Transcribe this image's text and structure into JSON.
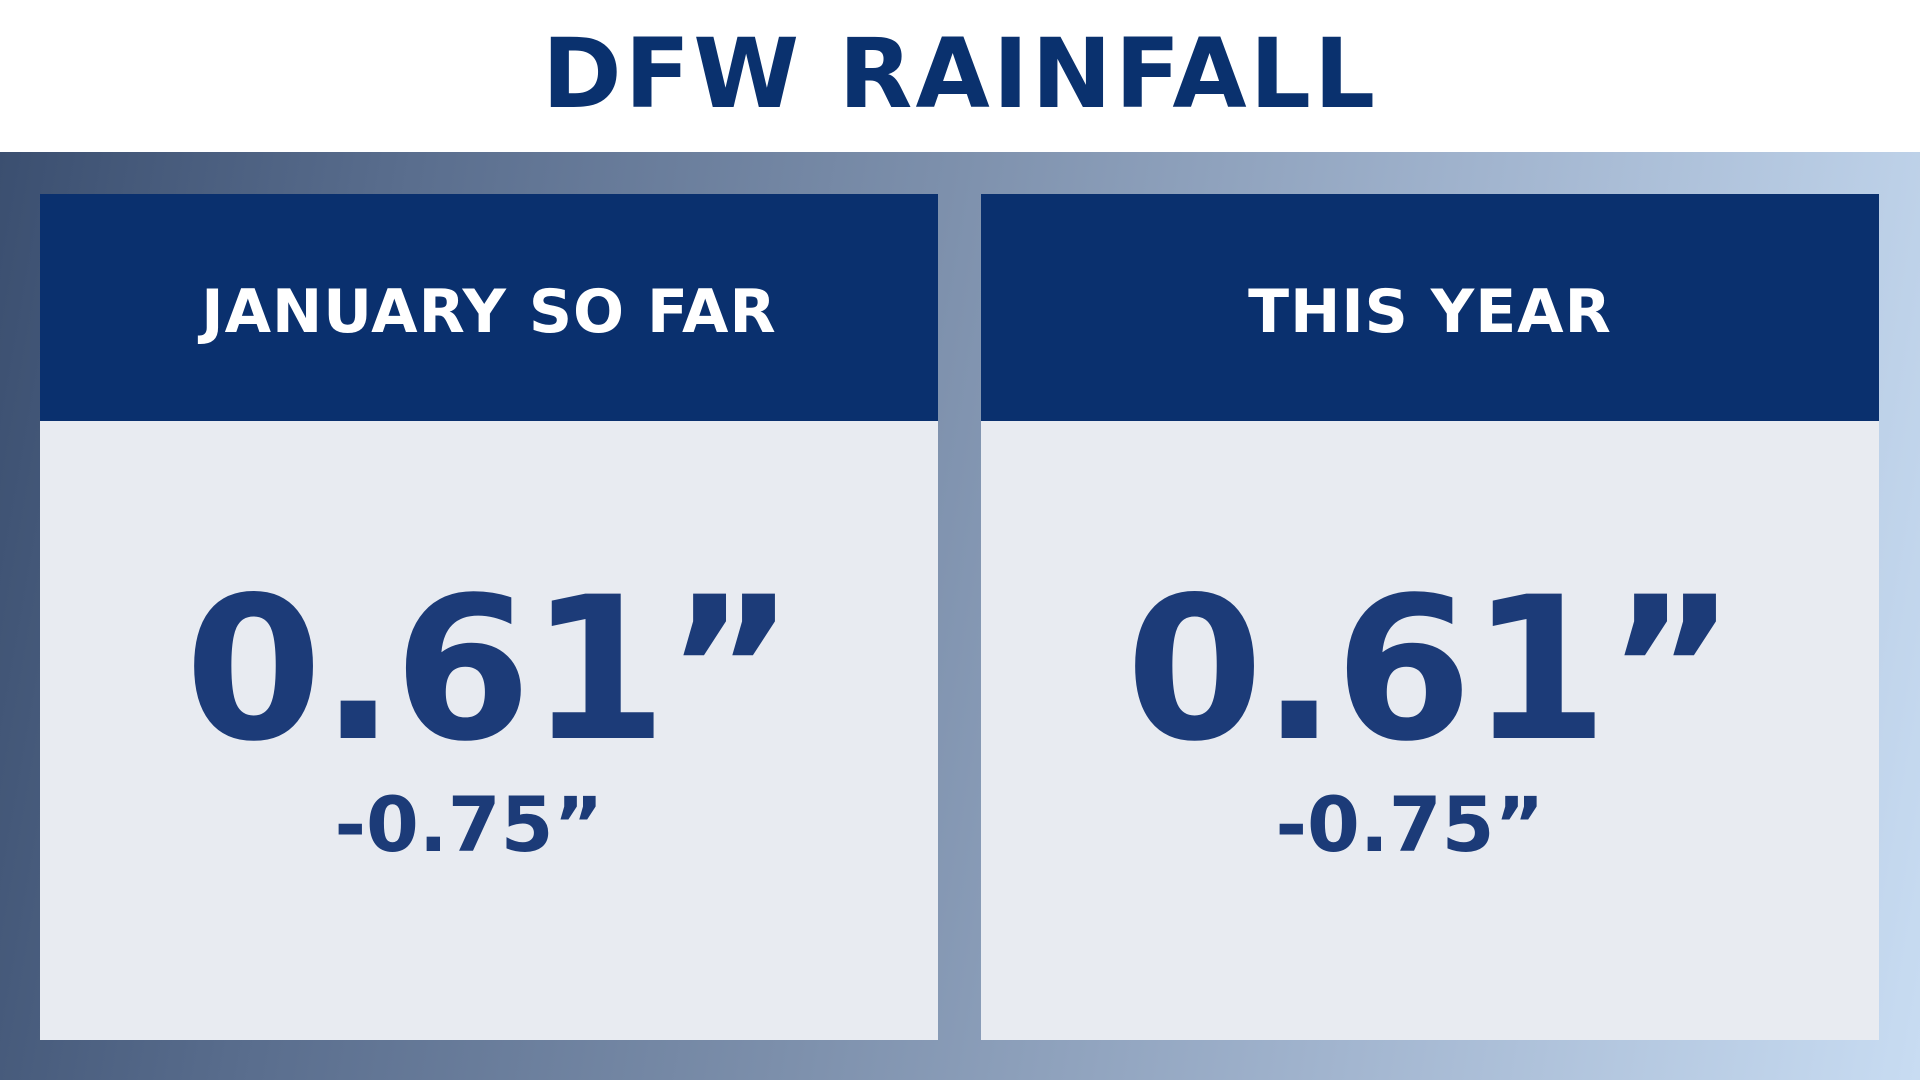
{
  "title": "DFW RAINFALL",
  "colors": {
    "title_text": "#0a316e",
    "header_bg": "#0a306e",
    "header_text": "#ffffff",
    "card_bg": "#e8ebf1",
    "value_text": "#1c3b78",
    "frame_gradient_start": "#3b4f70",
    "frame_gradient_end": "#c8dcf2"
  },
  "panels": [
    {
      "header": "JANUARY SO FAR",
      "value": "0.61”",
      "departure": "-0.75”"
    },
    {
      "header": "THIS YEAR",
      "value": "0.61”",
      "departure": "-0.75”"
    }
  ]
}
